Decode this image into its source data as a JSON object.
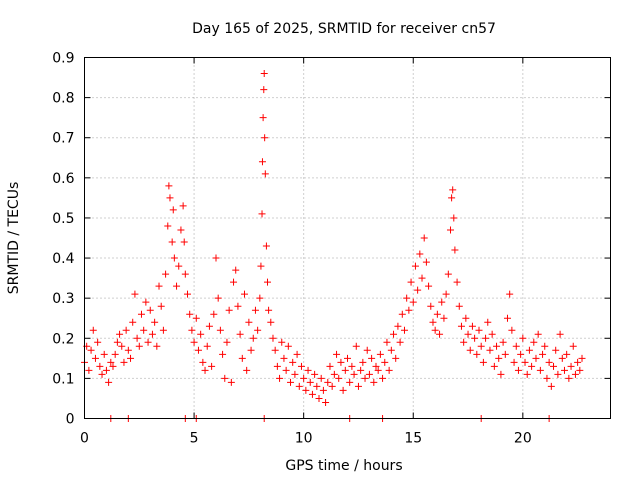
{
  "chart_data": {
    "type": "scatter",
    "title": "Day 165 of 2025, SRMTID for receiver cn57",
    "xlabel": "GPS time / hours",
    "ylabel": "SRMTID / TECUs",
    "xlim": [
      0,
      24
    ],
    "ylim": [
      0,
      0.9
    ],
    "xticks": [
      0,
      5,
      10,
      15,
      20
    ],
    "xtick_labels": [
      "0",
      "5",
      "10",
      "15",
      "20"
    ],
    "yticks": [
      0,
      0.1,
      0.2,
      0.3,
      0.4,
      0.5,
      0.6,
      0.7,
      0.8,
      0.9
    ],
    "ytick_labels": [
      "0",
      "0.1",
      "0.2",
      "0.3",
      "0.4",
      "0.5",
      "0.6",
      "0.7",
      "0.8",
      "0.9"
    ],
    "grid": true,
    "marker": "+",
    "marker_color": "#ff0000",
    "legend": "none",
    "series": [
      {
        "name": "SRMTID",
        "points": [
          [
            0.0,
            0.14
          ],
          [
            0.1,
            0.18
          ],
          [
            0.2,
            0.12
          ],
          [
            0.3,
            0.17
          ],
          [
            0.4,
            0.22
          ],
          [
            0.5,
            0.15
          ],
          [
            0.6,
            0.19
          ],
          [
            0.7,
            0.13
          ],
          [
            0.8,
            0.11
          ],
          [
            0.9,
            0.16
          ],
          [
            1.0,
            0.12
          ],
          [
            1.1,
            0.09
          ],
          [
            1.2,
            0.14
          ],
          [
            1.3,
            0.13
          ],
          [
            1.4,
            0.16
          ],
          [
            1.5,
            0.19
          ],
          [
            1.6,
            0.21
          ],
          [
            1.7,
            0.18
          ],
          [
            1.8,
            0.14
          ],
          [
            1.9,
            0.22
          ],
          [
            2.0,
            0.17
          ],
          [
            2.1,
            0.15
          ],
          [
            2.2,
            0.24
          ],
          [
            2.3,
            0.31
          ],
          [
            2.4,
            0.2
          ],
          [
            2.5,
            0.18
          ],
          [
            2.6,
            0.26
          ],
          [
            2.7,
            0.22
          ],
          [
            2.8,
            0.29
          ],
          [
            2.9,
            0.19
          ],
          [
            3.0,
            0.27
          ],
          [
            3.1,
            0.21
          ],
          [
            3.2,
            0.24
          ],
          [
            3.3,
            0.18
          ],
          [
            3.4,
            0.33
          ],
          [
            3.5,
            0.28
          ],
          [
            3.6,
            0.22
          ],
          [
            3.7,
            0.36
          ],
          [
            3.8,
            0.48
          ],
          [
            3.85,
            0.58
          ],
          [
            3.9,
            0.55
          ],
          [
            4.0,
            0.44
          ],
          [
            4.05,
            0.52
          ],
          [
            4.1,
            0.4
          ],
          [
            4.2,
            0.33
          ],
          [
            4.3,
            0.38
          ],
          [
            4.4,
            0.47
          ],
          [
            4.5,
            0.53
          ],
          [
            4.55,
            0.44
          ],
          [
            4.6,
            0.36
          ],
          [
            4.7,
            0.31
          ],
          [
            4.8,
            0.26
          ],
          [
            4.9,
            0.22
          ],
          [
            5.0,
            0.19
          ],
          [
            5.1,
            0.25
          ],
          [
            5.2,
            0.17
          ],
          [
            5.3,
            0.21
          ],
          [
            5.4,
            0.14
          ],
          [
            5.5,
            0.12
          ],
          [
            5.6,
            0.18
          ],
          [
            5.7,
            0.23
          ],
          [
            5.8,
            0.13
          ],
          [
            5.9,
            0.26
          ],
          [
            6.0,
            0.4
          ],
          [
            6.1,
            0.3
          ],
          [
            6.2,
            0.22
          ],
          [
            6.3,
            0.16
          ],
          [
            6.4,
            0.1
          ],
          [
            6.5,
            0.19
          ],
          [
            6.6,
            0.27
          ],
          [
            6.7,
            0.09
          ],
          [
            6.8,
            0.34
          ],
          [
            6.9,
            0.37
          ],
          [
            7.0,
            0.28
          ],
          [
            7.1,
            0.21
          ],
          [
            7.2,
            0.15
          ],
          [
            7.3,
            0.31
          ],
          [
            7.4,
            0.12
          ],
          [
            7.5,
            0.24
          ],
          [
            7.6,
            0.17
          ],
          [
            7.7,
            0.2
          ],
          [
            7.8,
            0.27
          ],
          [
            7.9,
            0.22
          ],
          [
            8.0,
            0.3
          ],
          [
            8.05,
            0.38
          ],
          [
            8.1,
            0.51
          ],
          [
            8.12,
            0.64
          ],
          [
            8.15,
            0.75
          ],
          [
            8.18,
            0.82
          ],
          [
            8.2,
            0.86
          ],
          [
            8.22,
            0.7
          ],
          [
            8.25,
            0.61
          ],
          [
            8.3,
            0.43
          ],
          [
            8.35,
            0.34
          ],
          [
            8.4,
            0.27
          ],
          [
            8.5,
            0.24
          ],
          [
            8.6,
            0.2
          ],
          [
            8.7,
            0.17
          ],
          [
            8.8,
            0.13
          ],
          [
            8.9,
            0.1
          ],
          [
            9.0,
            0.19
          ],
          [
            9.1,
            0.15
          ],
          [
            9.2,
            0.12
          ],
          [
            9.3,
            0.18
          ],
          [
            9.4,
            0.09
          ],
          [
            9.5,
            0.14
          ],
          [
            9.6,
            0.11
          ],
          [
            9.7,
            0.16
          ],
          [
            9.8,
            0.08
          ],
          [
            9.9,
            0.13
          ],
          [
            10.0,
            0.1
          ],
          [
            10.1,
            0.07
          ],
          [
            10.2,
            0.12
          ],
          [
            10.3,
            0.09
          ],
          [
            10.4,
            0.06
          ],
          [
            10.5,
            0.11
          ],
          [
            10.6,
            0.08
          ],
          [
            10.7,
            0.05
          ],
          [
            10.8,
            0.1
          ],
          [
            10.9,
            0.07
          ],
          [
            11.0,
            0.04
          ],
          [
            11.1,
            0.09
          ],
          [
            11.2,
            0.13
          ],
          [
            11.3,
            0.08
          ],
          [
            11.4,
            0.11
          ],
          [
            11.5,
            0.16
          ],
          [
            11.6,
            0.1
          ],
          [
            11.7,
            0.14
          ],
          [
            11.8,
            0.07
          ],
          [
            11.9,
            0.12
          ],
          [
            12.0,
            0.15
          ],
          [
            12.1,
            0.09
          ],
          [
            12.2,
            0.13
          ],
          [
            12.3,
            0.11
          ],
          [
            12.4,
            0.18
          ],
          [
            12.5,
            0.08
          ],
          [
            12.6,
            0.12
          ],
          [
            12.7,
            0.14
          ],
          [
            12.8,
            0.1
          ],
          [
            12.9,
            0.17
          ],
          [
            13.0,
            0.11
          ],
          [
            13.1,
            0.15
          ],
          [
            13.2,
            0.09
          ],
          [
            13.3,
            0.13
          ],
          [
            13.4,
            0.12
          ],
          [
            13.5,
            0.16
          ],
          [
            13.6,
            0.1
          ],
          [
            13.7,
            0.14
          ],
          [
            13.8,
            0.19
          ],
          [
            13.9,
            0.12
          ],
          [
            14.0,
            0.17
          ],
          [
            14.1,
            0.21
          ],
          [
            14.2,
            0.15
          ],
          [
            14.3,
            0.23
          ],
          [
            14.4,
            0.19
          ],
          [
            14.5,
            0.26
          ],
          [
            14.6,
            0.22
          ],
          [
            14.7,
            0.3
          ],
          [
            14.8,
            0.27
          ],
          [
            14.9,
            0.34
          ],
          [
            15.0,
            0.29
          ],
          [
            15.1,
            0.38
          ],
          [
            15.2,
            0.32
          ],
          [
            15.3,
            0.41
          ],
          [
            15.4,
            0.35
          ],
          [
            15.5,
            0.45
          ],
          [
            15.6,
            0.39
          ],
          [
            15.7,
            0.33
          ],
          [
            15.8,
            0.28
          ],
          [
            15.9,
            0.24
          ],
          [
            16.0,
            0.22
          ],
          [
            16.1,
            0.26
          ],
          [
            16.2,
            0.21
          ],
          [
            16.3,
            0.29
          ],
          [
            16.4,
            0.25
          ],
          [
            16.5,
            0.31
          ],
          [
            16.6,
            0.36
          ],
          [
            16.7,
            0.47
          ],
          [
            16.75,
            0.55
          ],
          [
            16.8,
            0.57
          ],
          [
            16.85,
            0.5
          ],
          [
            16.9,
            0.42
          ],
          [
            17.0,
            0.34
          ],
          [
            17.1,
            0.28
          ],
          [
            17.2,
            0.23
          ],
          [
            17.3,
            0.19
          ],
          [
            17.4,
            0.25
          ],
          [
            17.5,
            0.21
          ],
          [
            17.6,
            0.17
          ],
          [
            17.7,
            0.23
          ],
          [
            17.8,
            0.2
          ],
          [
            17.9,
            0.16
          ],
          [
            18.0,
            0.22
          ],
          [
            18.1,
            0.18
          ],
          [
            18.2,
            0.14
          ],
          [
            18.3,
            0.2
          ],
          [
            18.4,
            0.24
          ],
          [
            18.5,
            0.17
          ],
          [
            18.6,
            0.21
          ],
          [
            18.7,
            0.13
          ],
          [
            18.8,
            0.18
          ],
          [
            18.9,
            0.15
          ],
          [
            19.0,
            0.11
          ],
          [
            19.1,
            0.19
          ],
          [
            19.2,
            0.16
          ],
          [
            19.3,
            0.25
          ],
          [
            19.4,
            0.31
          ],
          [
            19.5,
            0.22
          ],
          [
            19.6,
            0.14
          ],
          [
            19.7,
            0.18
          ],
          [
            19.8,
            0.12
          ],
          [
            19.9,
            0.16
          ],
          [
            20.0,
            0.2
          ],
          [
            20.1,
            0.14
          ],
          [
            20.2,
            0.11
          ],
          [
            20.3,
            0.17
          ],
          [
            20.4,
            0.13
          ],
          [
            20.5,
            0.19
          ],
          [
            20.6,
            0.15
          ],
          [
            20.7,
            0.21
          ],
          [
            20.8,
            0.12
          ],
          [
            20.9,
            0.16
          ],
          [
            21.0,
            0.18
          ],
          [
            21.1,
            0.1
          ],
          [
            21.2,
            0.14
          ],
          [
            21.3,
            0.08
          ],
          [
            21.4,
            0.13
          ],
          [
            21.5,
            0.17
          ],
          [
            21.6,
            0.11
          ],
          [
            21.7,
            0.21
          ],
          [
            21.8,
            0.15
          ],
          [
            21.9,
            0.12
          ],
          [
            22.0,
            0.16
          ],
          [
            22.1,
            0.1
          ],
          [
            22.2,
            0.13
          ],
          [
            22.3,
            0.18
          ],
          [
            22.4,
            0.11
          ],
          [
            22.5,
            0.14
          ],
          [
            22.6,
            0.12
          ],
          [
            22.7,
            0.15
          ],
          [
            1.2,
            0.0
          ],
          [
            2.0,
            0.0
          ],
          [
            4.6,
            0.0
          ],
          [
            5.1,
            0.0
          ],
          [
            8.2,
            0.0
          ],
          [
            12.1,
            0.0
          ],
          [
            13.6,
            0.0
          ],
          [
            18.1,
            0.0
          ],
          [
            21.2,
            0.0
          ]
        ]
      }
    ]
  }
}
